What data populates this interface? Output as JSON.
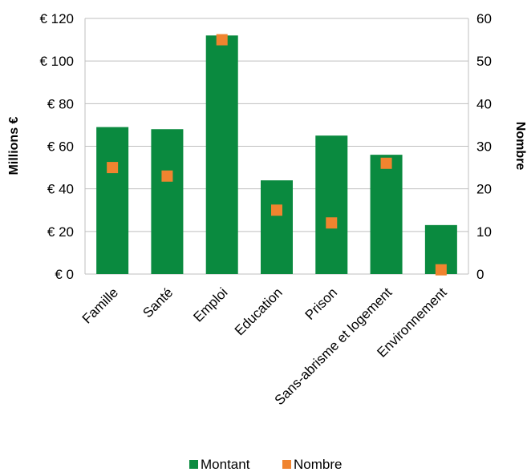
{
  "chart_data": {
    "type": "bar",
    "categories": [
      "Famille",
      "Santé",
      "Emploi",
      "Education",
      "Prison",
      "Sans-abrisme et logement",
      "Environnement"
    ],
    "series": [
      {
        "name": "Montant",
        "type": "bar",
        "axis": "left",
        "color": "#0a8a3f",
        "values": [
          69,
          68,
          112,
          44,
          65,
          56,
          23
        ]
      },
      {
        "name": "Nombre",
        "type": "scatter",
        "axis": "right",
        "color": "#f0842f",
        "values": [
          25,
          23,
          55,
          15,
          12,
          26,
          1
        ]
      }
    ],
    "ylabel": "Millions €",
    "y2label": "Nombre",
    "ylim": [
      0,
      120
    ],
    "y2lim": [
      0,
      60
    ],
    "yticks": [
      "€ 0",
      "€ 20",
      "€ 40",
      "€ 60",
      "€ 80",
      "€ 100",
      "€ 120"
    ],
    "y2ticks": [
      "0",
      "10",
      "20",
      "30",
      "40",
      "50",
      "60"
    ],
    "grid": true,
    "legend": "bottom"
  }
}
